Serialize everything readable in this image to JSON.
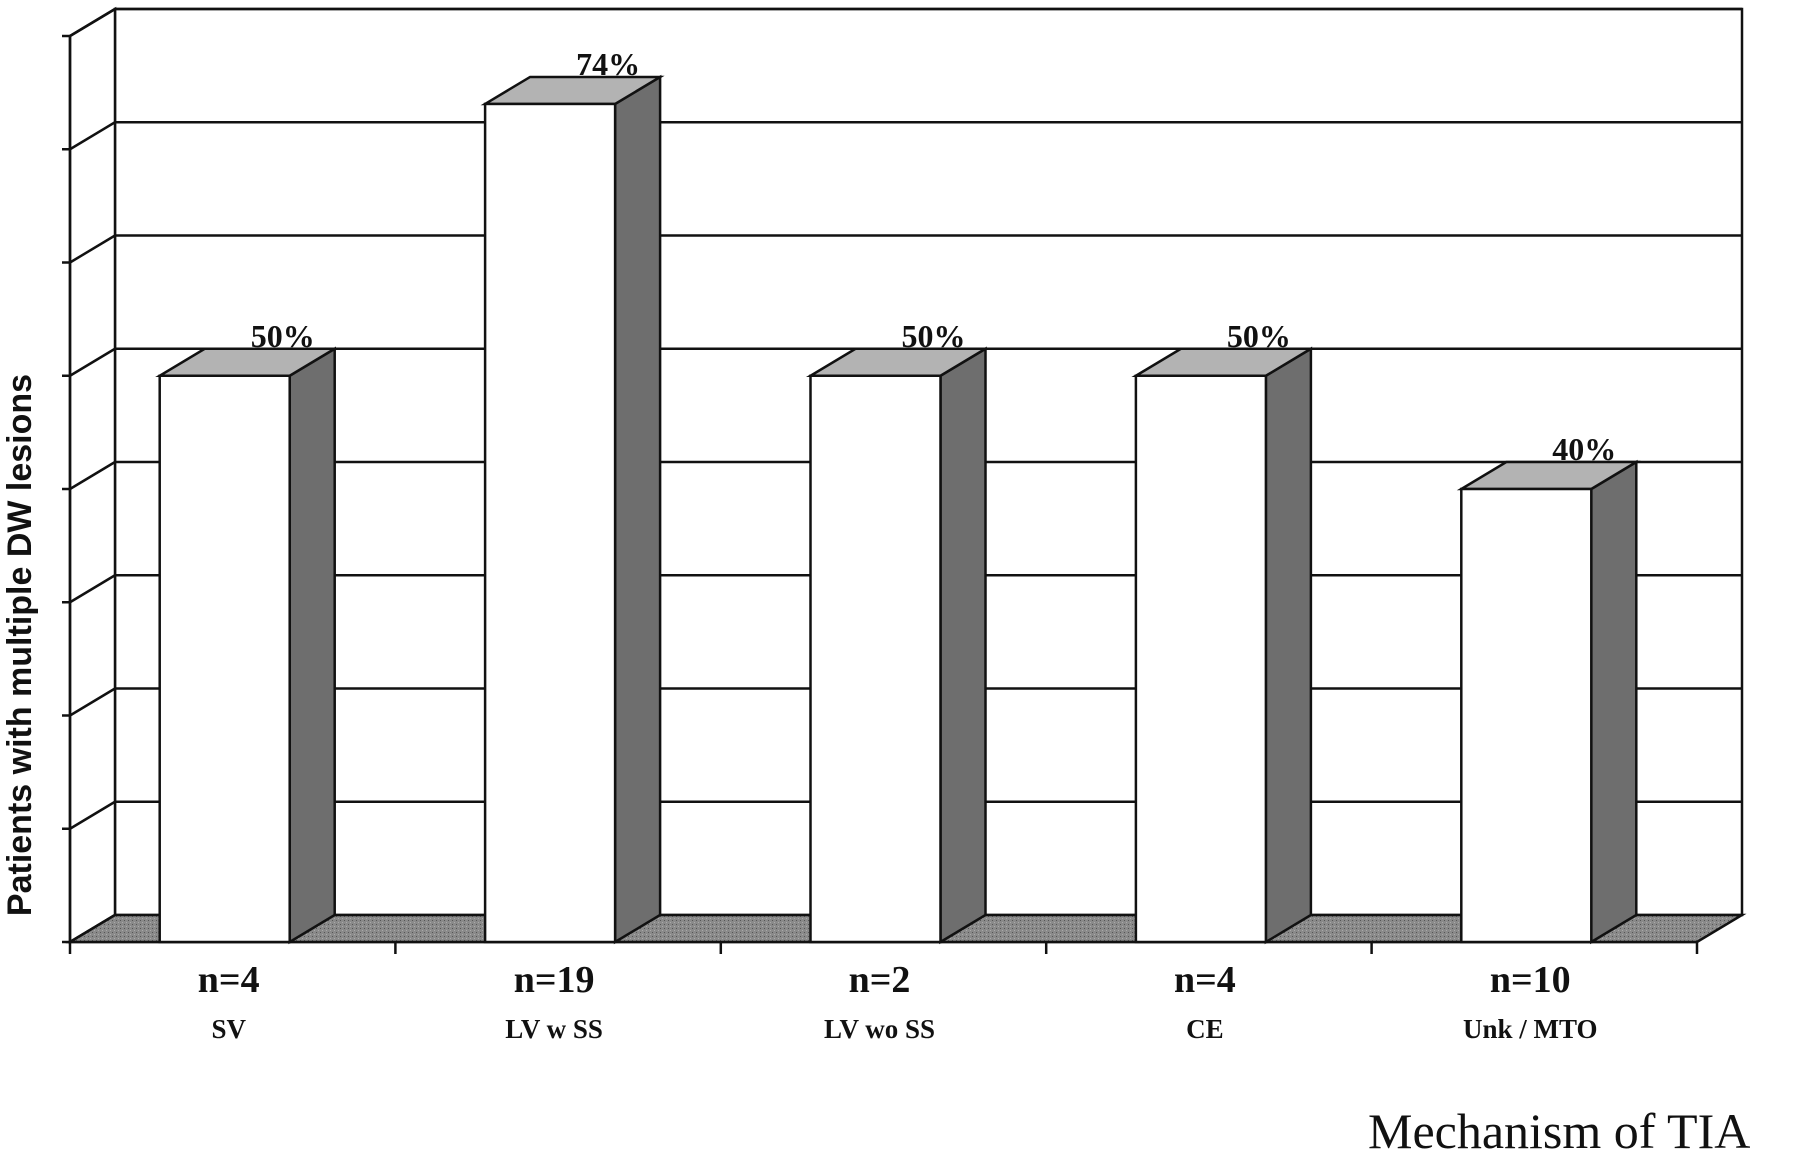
{
  "chart_data": {
    "type": "bar",
    "ylabel": "Patients with multiple DW lesions",
    "xlabel": "Mechanism of TIA",
    "ylim": [
      0,
      80
    ],
    "y_grid_step": 10,
    "grid": true,
    "categories": [
      "SV",
      "LV w SS",
      "LV wo SS",
      "CE",
      "Unk / MTO"
    ],
    "counts": [
      "n=4",
      "n=19",
      "n=2",
      "n=4",
      "n=10"
    ],
    "values": [
      50,
      74,
      50,
      50,
      40
    ],
    "data_labels": [
      "50%",
      "74%",
      "50%",
      "50%",
      "40%"
    ],
    "colors": {
      "bar_front": "#ffffff",
      "bar_side": "#6e6e6e",
      "bar_top": "#b3b3b3",
      "floor": "#7a7a7a",
      "lines": "#111111"
    }
  }
}
